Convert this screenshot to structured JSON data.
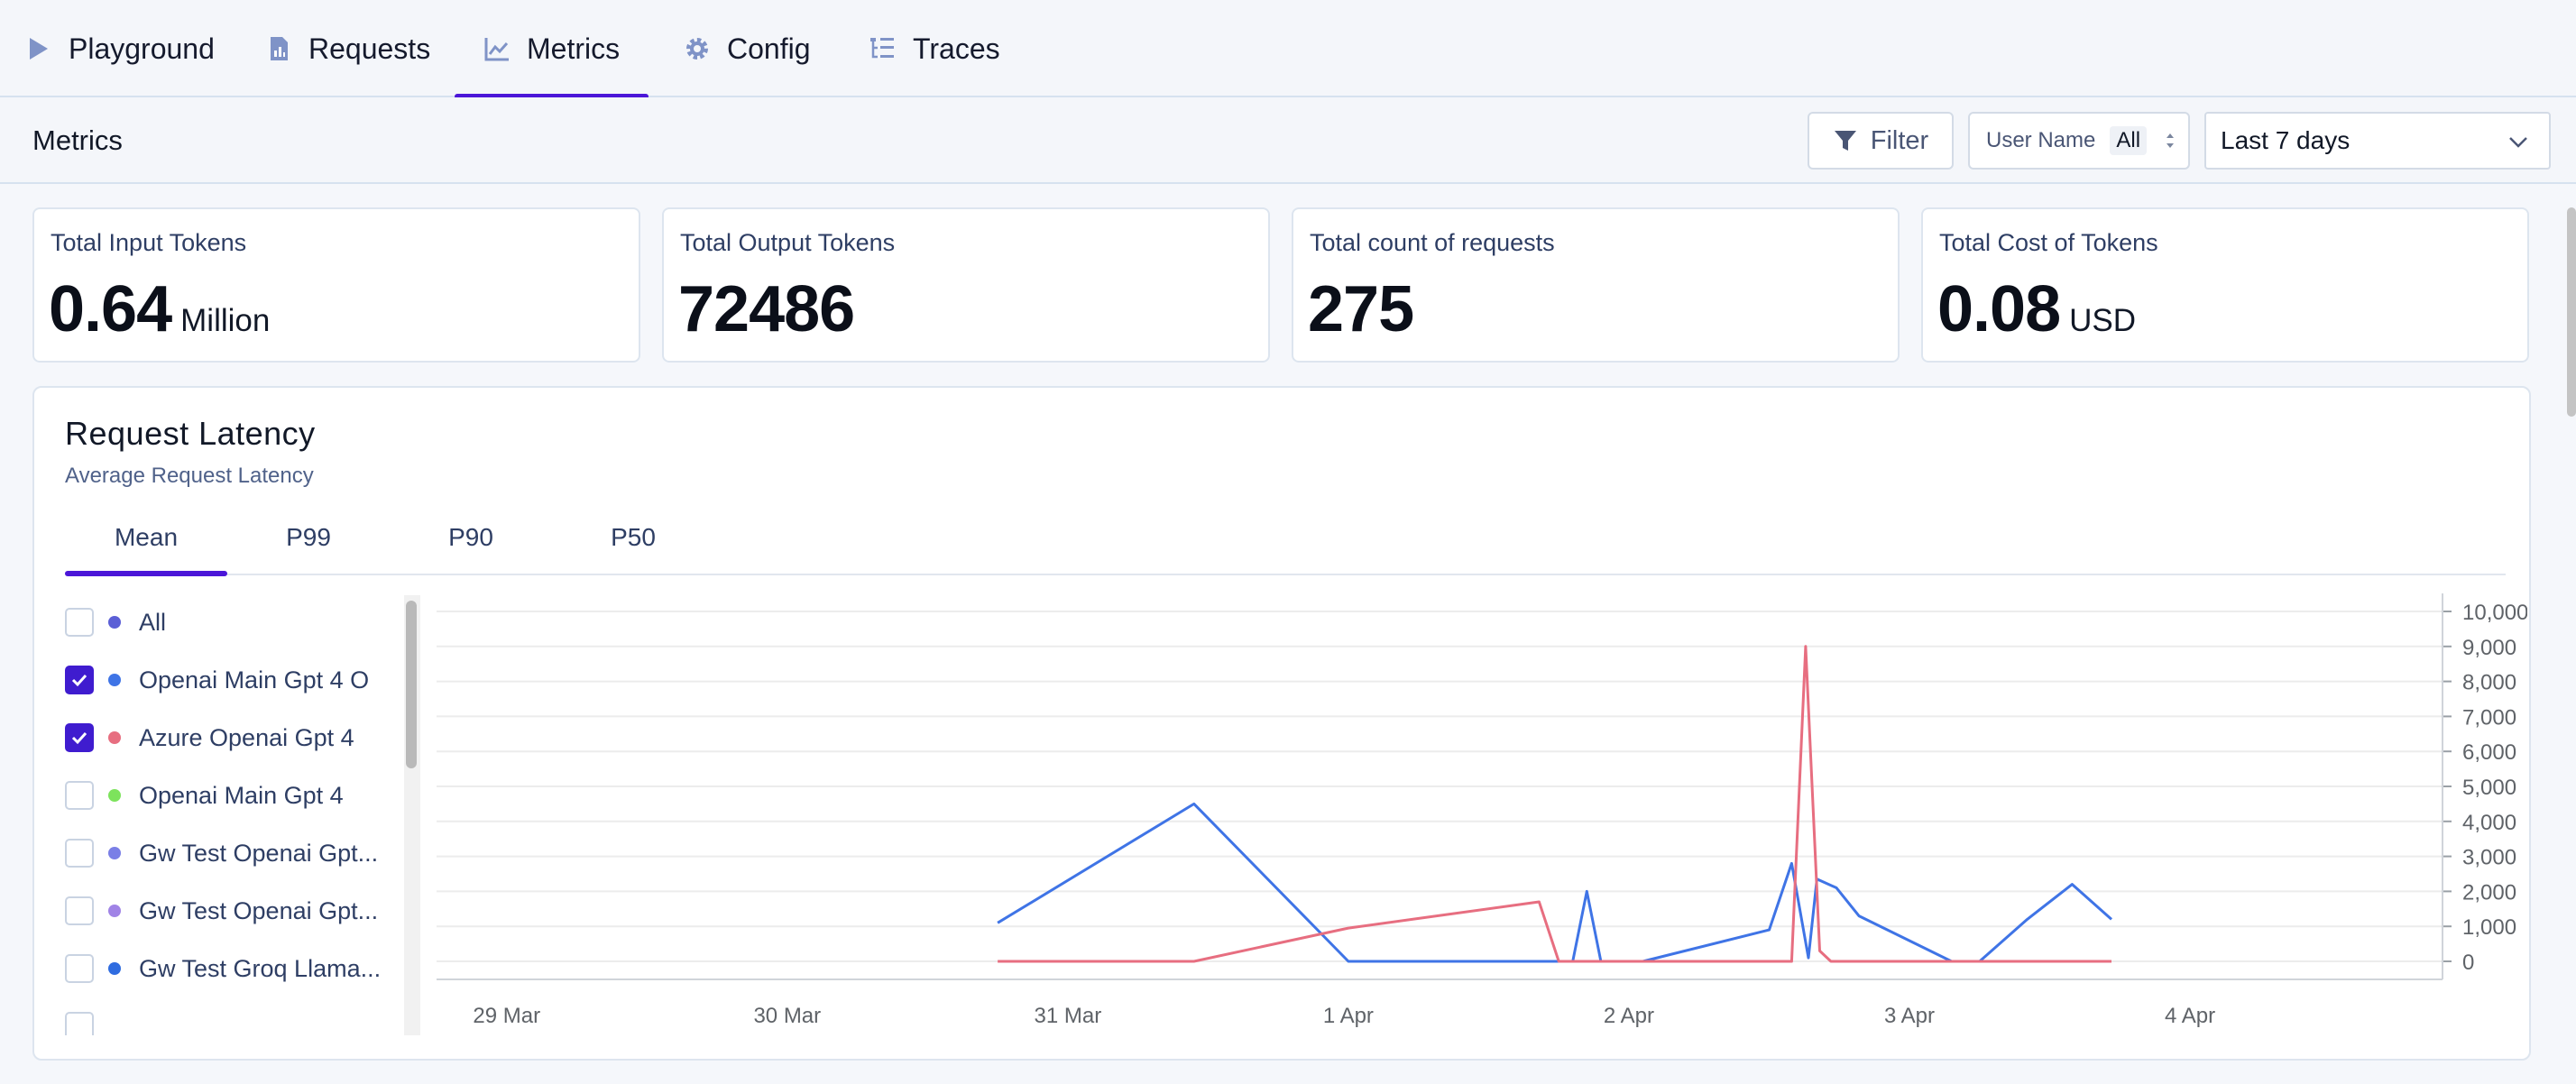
{
  "nav": {
    "tabs": [
      {
        "label": "Playground",
        "icon": "play-icon"
      },
      {
        "label": "Requests",
        "icon": "document-chart-icon"
      },
      {
        "label": "Metrics",
        "icon": "line-chart-icon",
        "active": true
      },
      {
        "label": "Config",
        "icon": "gear-icon"
      },
      {
        "label": "Traces",
        "icon": "tree-list-icon"
      }
    ]
  },
  "header": {
    "title": "Metrics",
    "filter_label": "Filter",
    "user_name_label": "User Name",
    "user_name_value": "All",
    "date_range": "Last 7 days"
  },
  "stats": [
    {
      "label": "Total Input Tokens",
      "value": "0.64",
      "unit": "Million"
    },
    {
      "label": "Total Output Tokens",
      "value": "72486",
      "unit": ""
    },
    {
      "label": "Total count of requests",
      "value": "275",
      "unit": ""
    },
    {
      "label": "Total Cost of Tokens",
      "value": "0.08",
      "unit": "USD"
    }
  ],
  "latency": {
    "title": "Request Latency",
    "subtitle": "Average Request Latency",
    "tabs": [
      "Mean",
      "P99",
      "P90",
      "P50"
    ],
    "active_tab": "Mean",
    "legend": [
      {
        "label": "All",
        "color": "#5b5fd6",
        "checked": false
      },
      {
        "label": "Openai Main Gpt 4 O",
        "color": "#3f74e6",
        "checked": true
      },
      {
        "label": "Azure Openai Gpt 4",
        "color": "#e76e80",
        "checked": true
      },
      {
        "label": "Openai Main Gpt 4",
        "color": "#7de35c",
        "checked": false
      },
      {
        "label": "Gw Test Openai Gpt...",
        "color": "#7a7fe6",
        "checked": false
      },
      {
        "label": "Gw Test Openai Gpt...",
        "color": "#a083e6",
        "checked": false
      },
      {
        "label": "Gw Test Groq Llama...",
        "color": "#2f6ce0",
        "checked": false
      }
    ]
  },
  "chart_data": {
    "type": "line",
    "x_ticks": [
      "29 Mar",
      "30 Mar",
      "31 Mar",
      "1 Apr",
      "2 Apr",
      "3 Apr",
      "4 Apr"
    ],
    "ylim": [
      0,
      10000
    ],
    "y_ticks": [
      "0",
      "1,000",
      "2,000",
      "3,000",
      "4,000",
      "5,000",
      "6,000",
      "7,000",
      "8,000",
      "9,000",
      "10,000"
    ],
    "grid": true,
    "y_axis_side": "right",
    "series": [
      {
        "name": "Openai Main Gpt 4 O",
        "color": "#3f74e6",
        "x": [
          30.75,
          31.45,
          32.0,
          32.8,
          32.85,
          32.9,
          33.05,
          33.5,
          33.58,
          33.64,
          33.67,
          33.74,
          33.82,
          34.15,
          34.25,
          34.42,
          34.58,
          34.72
        ],
        "y": [
          1100,
          4500,
          0,
          0,
          2000,
          0,
          0,
          900,
          2800,
          100,
          2350,
          2100,
          1300,
          0,
          0,
          1200,
          2200,
          1200
        ]
      },
      {
        "name": "Azure Openai Gpt 4",
        "color": "#e76e80",
        "x": [
          30.75,
          31.45,
          32.0,
          32.68,
          32.75,
          32.82,
          33.58,
          33.63,
          33.68,
          33.72,
          34.72
        ],
        "y": [
          0,
          0,
          950,
          1700,
          0,
          0,
          0,
          9000,
          300,
          0,
          0
        ]
      }
    ]
  }
}
